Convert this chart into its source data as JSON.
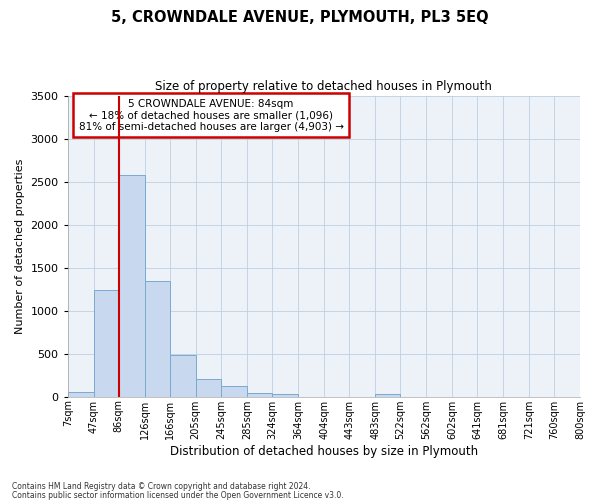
{
  "title": "5, CROWNDALE AVENUE, PLYMOUTH, PL3 5EQ",
  "subtitle": "Size of property relative to detached houses in Plymouth",
  "xlabel": "Distribution of detached houses by size in Plymouth",
  "ylabel": "Number of detached properties",
  "bar_color": "#c8d8ee",
  "bar_edge_color": "#7aaad0",
  "grid_color": "#c0cfe0",
  "background_color": "#edf2f9",
  "fig_background": "#ffffff",
  "ylim": [
    0,
    3500
  ],
  "yticks": [
    0,
    500,
    1000,
    1500,
    2000,
    2500,
    3000,
    3500
  ],
  "bin_labels": [
    "7sqm",
    "47sqm",
    "86sqm",
    "126sqm",
    "166sqm",
    "205sqm",
    "245sqm",
    "285sqm",
    "324sqm",
    "364sqm",
    "404sqm",
    "443sqm",
    "483sqm",
    "522sqm",
    "562sqm",
    "602sqm",
    "641sqm",
    "681sqm",
    "721sqm",
    "760sqm",
    "800sqm"
  ],
  "bin_edges": [
    7,
    47,
    86,
    126,
    166,
    205,
    245,
    285,
    324,
    364,
    404,
    443,
    483,
    522,
    562,
    602,
    641,
    681,
    721,
    760,
    800
  ],
  "bar_heights": [
    50,
    1240,
    2580,
    1350,
    490,
    200,
    120,
    40,
    30,
    0,
    0,
    0,
    30,
    0,
    0,
    0,
    0,
    0,
    0,
    0
  ],
  "property_line_x": 86,
  "annotation_title": "5 CROWNDALE AVENUE: 84sqm",
  "annotation_line1": "← 18% of detached houses are smaller (1,096)",
  "annotation_line2": "81% of semi-detached houses are larger (4,903) →",
  "annotation_box_color": "#ffffff",
  "annotation_box_edge": "#cc0000",
  "red_line_color": "#cc0000",
  "footnote1": "Contains HM Land Registry data © Crown copyright and database right 2024.",
  "footnote2": "Contains public sector information licensed under the Open Government Licence v3.0."
}
